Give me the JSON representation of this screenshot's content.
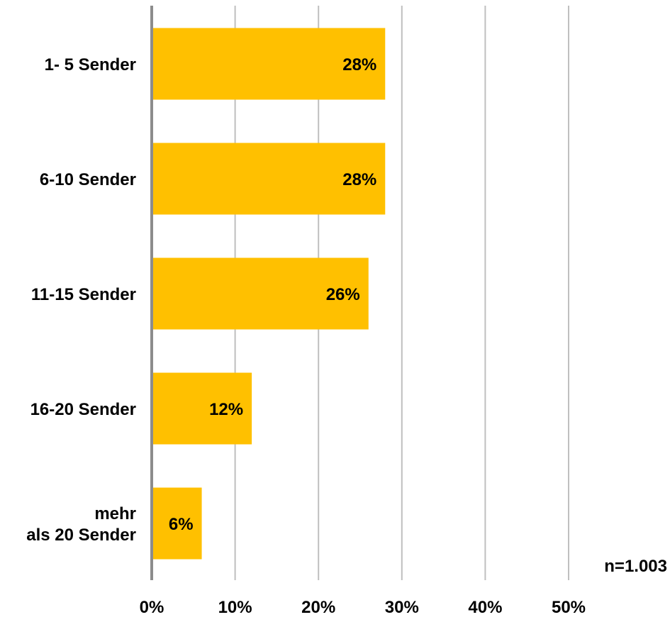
{
  "chart_data": {
    "type": "bar",
    "orientation": "horizontal",
    "categories": [
      [
        "1- 5 Sender"
      ],
      [
        "6-10 Sender"
      ],
      [
        "11-15 Sender"
      ],
      [
        "16-20 Sender"
      ],
      [
        "mehr",
        "als 20 Sender"
      ]
    ],
    "values": [
      28,
      28,
      26,
      12,
      6
    ],
    "data_labels": [
      "28%",
      "28%",
      "26%",
      "12%",
      "6%"
    ],
    "xlim": [
      0,
      50
    ],
    "x_ticks": [
      0,
      10,
      20,
      30,
      40,
      50
    ],
    "x_tick_labels": [
      "0%",
      "10%",
      "20%",
      "30%",
      "40%",
      "50%"
    ],
    "grid": true,
    "bar_color": "#FFC000",
    "note": "n=1.003"
  }
}
